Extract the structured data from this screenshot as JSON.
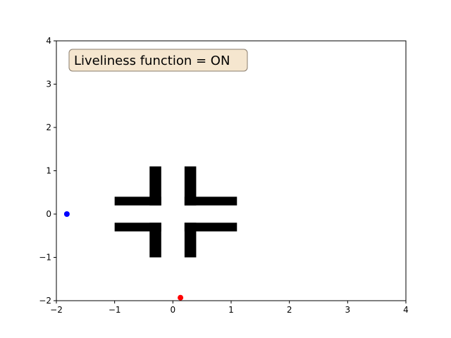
{
  "chart_data": {
    "type": "scatter",
    "title": "",
    "xlabel": "",
    "ylabel": "",
    "xlim": [
      -2,
      4
    ],
    "ylim": [
      -2,
      4
    ],
    "x_ticks": [
      -2,
      -1,
      0,
      1,
      2,
      3,
      4
    ],
    "y_ticks": [
      -2,
      -1,
      0,
      1,
      2,
      3,
      4
    ],
    "x_tick_labels": [
      "−2",
      "−1",
      "0",
      "1",
      "2",
      "3",
      "4"
    ],
    "y_tick_labels": [
      "−2",
      "−1",
      "0",
      "1",
      "2",
      "3",
      "4"
    ],
    "grid": false,
    "annotation": {
      "text": "Liveliness function = ON",
      "background_color": "#f5e6cf",
      "border_color": "#8a7d6e"
    },
    "obstacle_color": "#000000",
    "obstacles": [
      {
        "x0": -0.4,
        "x1": -0.2,
        "y0": 0.2,
        "y1": 1.1
      },
      {
        "x0": -1.0,
        "x1": -0.2,
        "y0": 0.2,
        "y1": 0.4
      },
      {
        "x0": 0.2,
        "x1": 0.4,
        "y0": 0.2,
        "y1": 1.1
      },
      {
        "x0": 0.2,
        "x1": 1.1,
        "y0": 0.2,
        "y1": 0.4
      },
      {
        "x0": -0.4,
        "x1": -0.2,
        "y0": -1.0,
        "y1": -0.2
      },
      {
        "x0": -1.0,
        "x1": -0.2,
        "y0": -0.4,
        "y1": -0.2
      },
      {
        "x0": 0.2,
        "x1": 0.4,
        "y0": -1.0,
        "y1": -0.2
      },
      {
        "x0": 0.2,
        "x1": 1.1,
        "y0": -0.4,
        "y1": -0.2
      }
    ],
    "points": [
      {
        "x": -1.82,
        "y": 0.0,
        "color": "#0000ff"
      },
      {
        "x": 0.13,
        "y": -1.93,
        "color": "#ff0000"
      }
    ]
  }
}
